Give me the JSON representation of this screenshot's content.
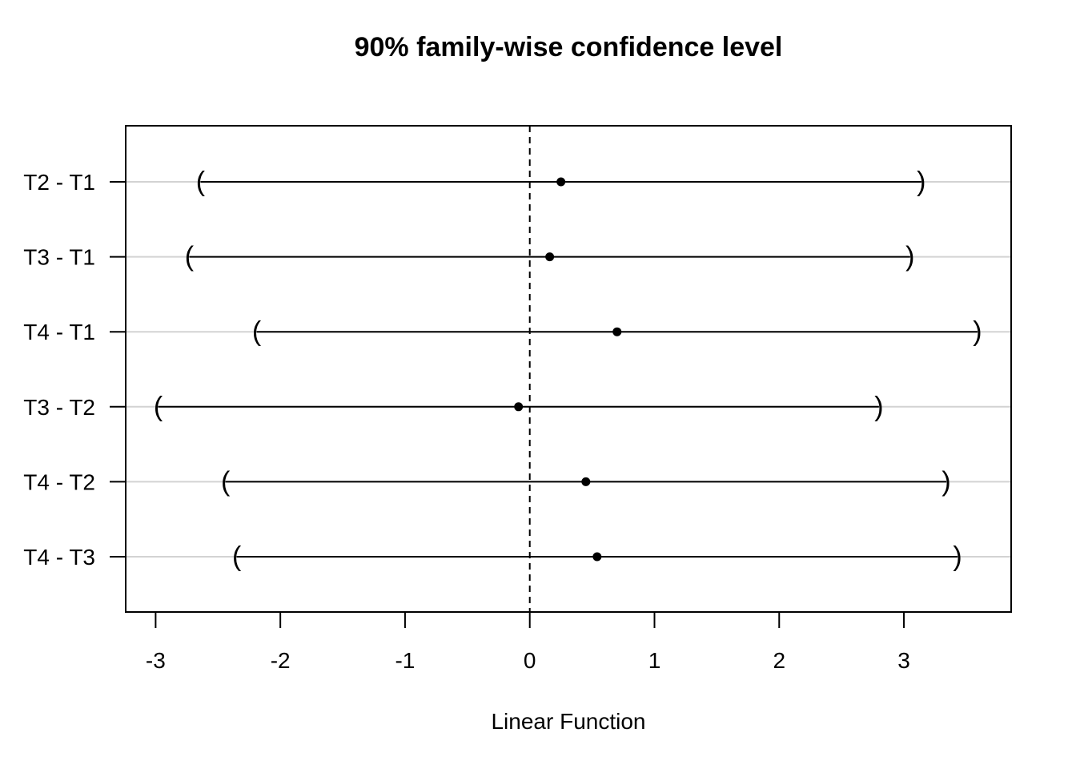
{
  "chart_data": {
    "type": "interval",
    "title": "90% family-wise confidence level",
    "xlabel": "Linear Function",
    "ylabel": "",
    "xlim": [
      -3.24,
      3.86
    ],
    "xticks": [
      -3,
      -2,
      -1,
      0,
      1,
      2,
      3
    ],
    "xtick_labels": [
      "-3",
      "-2",
      "-1",
      "0",
      "1",
      "2",
      "3"
    ],
    "reference_line": 0,
    "grid": "horizontal",
    "colors": {
      "interval": "#000000",
      "grid": "#d3d3d3",
      "reference": "#000000"
    },
    "comparisons": [
      {
        "label": "T2 - T1",
        "estimate": 0.25,
        "lower": -2.64,
        "upper": 3.14
      },
      {
        "label": "T3 - T1",
        "estimate": 0.16,
        "lower": -2.73,
        "upper": 3.05
      },
      {
        "label": "T4 - T1",
        "estimate": 0.7,
        "lower": -2.19,
        "upper": 3.59
      },
      {
        "label": "T3 - T2",
        "estimate": -0.09,
        "lower": -2.98,
        "upper": 2.8
      },
      {
        "label": "T4 - T2",
        "estimate": 0.45,
        "lower": -2.44,
        "upper": 3.34
      },
      {
        "label": "T4 - T3",
        "estimate": 0.54,
        "lower": -2.35,
        "upper": 3.43
      }
    ]
  }
}
